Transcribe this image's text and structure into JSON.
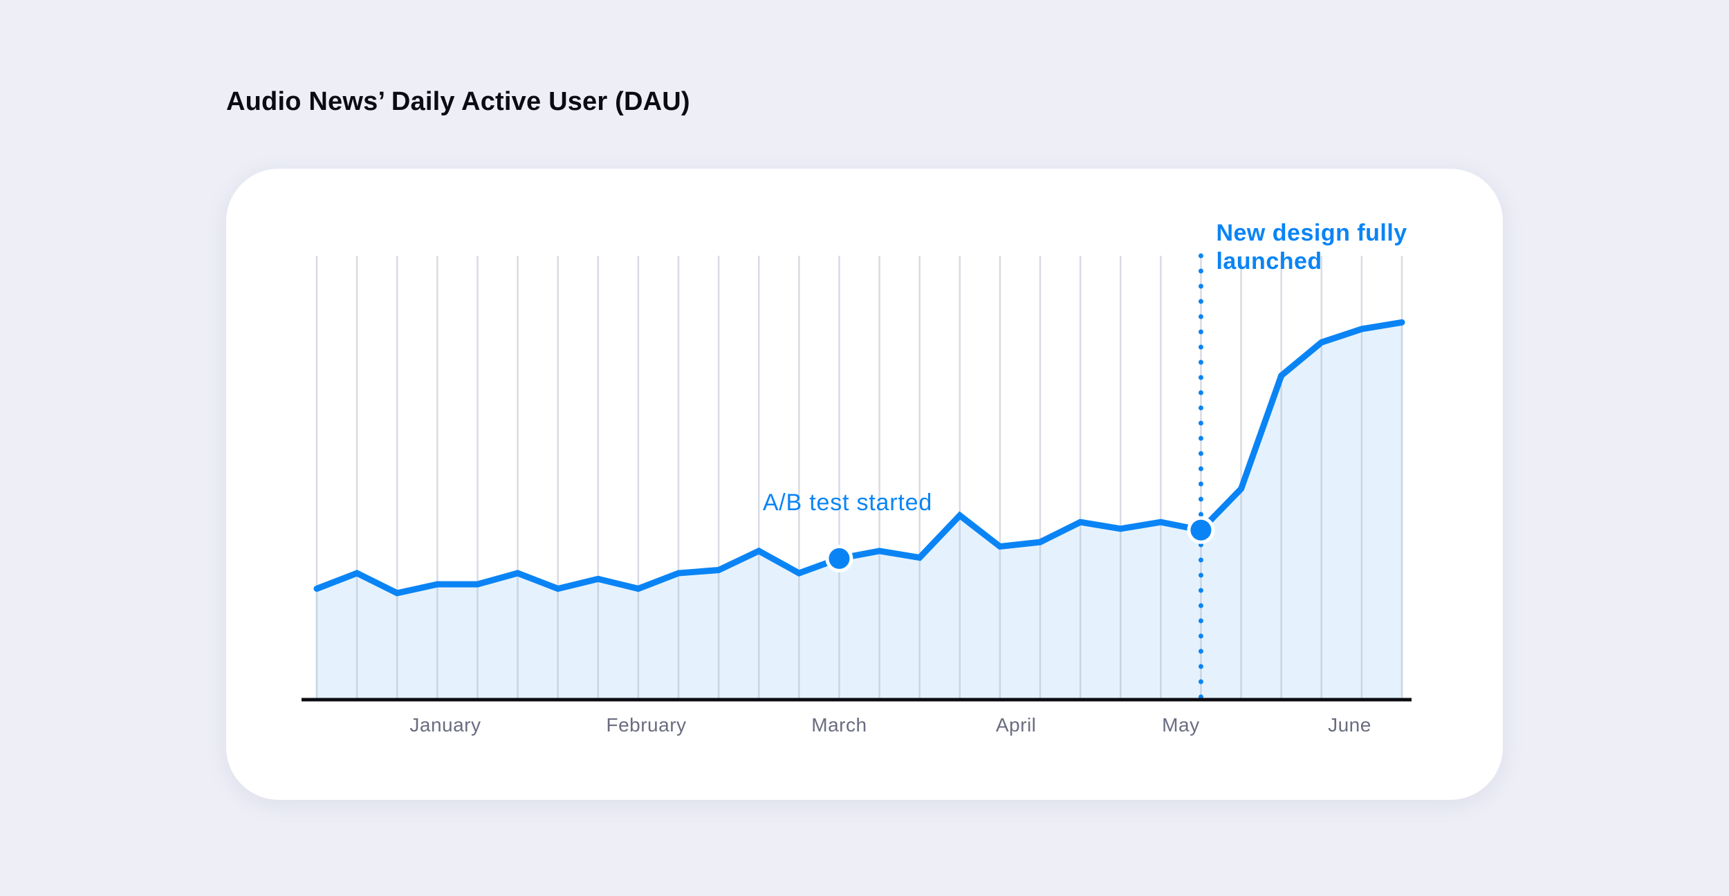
{
  "title": "Audio News’ Daily Active User (DAU)",
  "colors": {
    "background": "#EDEEF6",
    "card": "#FFFFFF",
    "line": "#0A84F5",
    "area": "#E5F2FD",
    "gridline": "#D9DBE2",
    "axis": "#0B0B12",
    "tick_label": "#6A6C80"
  },
  "chart_data": {
    "type": "area",
    "title": "Audio News’ Daily Active User (DAU)",
    "xlabel": "",
    "ylabel": "",
    "grid": "vertical",
    "x_tick_labels": [
      "January",
      "February",
      "March",
      "April",
      "May",
      "June"
    ],
    "ylim": [
      0,
      100
    ],
    "series": [
      {
        "values": [
          25,
          28.5,
          24,
          26,
          26,
          28.5,
          25,
          27.2,
          25,
          28.5,
          29.2,
          33.5,
          28.5,
          31.8,
          33.5,
          32,
          41.5,
          34.5,
          35.5,
          40,
          38.5,
          40,
          38.2,
          47.5,
          73,
          80.5,
          83.5,
          85
        ]
      }
    ],
    "annotations": [
      {
        "text": "A/B test started",
        "point_index": 13,
        "marker": "dot"
      },
      {
        "text_lines": [
          "New design fully",
          "launched"
        ],
        "point_index": 22,
        "marker": "dot",
        "line": "dotted-vertical"
      }
    ]
  }
}
